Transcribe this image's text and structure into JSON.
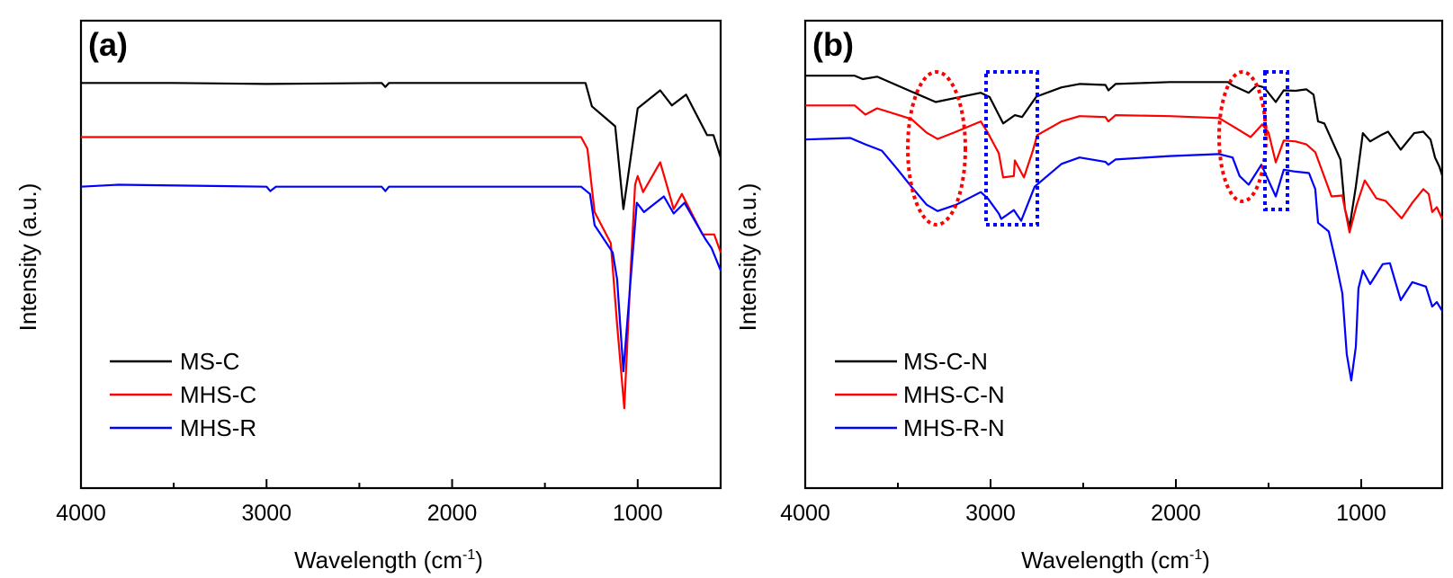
{
  "chart_data": [
    {
      "type": "line",
      "panel_label": "(a)",
      "xlabel": "Wavelength  (cm",
      "xlabel_sup": "-1",
      "xlabel_end": ")",
      "ylabel": "Intensity  (a.u.)",
      "xlim": [
        4000,
        553
      ],
      "ylim": [
        4,
        100
      ],
      "x_reversed": true,
      "grid": false,
      "legend_position": "bottom-left",
      "x_ticks": [
        4000,
        3000,
        2000,
        1000
      ],
      "x_tick_labels": [
        "4000",
        "3000",
        "2000",
        "1000"
      ],
      "x_minor_ticks": [
        3500,
        2500,
        1500
      ],
      "series": [
        {
          "name": "MS-C",
          "color": "#000000",
          "points": [
            [
              4000,
              87.2
            ],
            [
              3500,
              87.2
            ],
            [
              3000,
              87.0
            ],
            [
              2380,
              87.2
            ],
            [
              2360,
              86.4
            ],
            [
              2340,
              87.2
            ],
            [
              1281,
              87.2
            ],
            [
              1247,
              82.4
            ],
            [
              1121,
              78.3
            ],
            [
              1077,
              61.3
            ],
            [
              1000,
              82.0
            ],
            [
              879,
              85.7
            ],
            [
              816,
              82.6
            ],
            [
              739,
              84.8
            ],
            [
              626,
              76.5
            ],
            [
              592,
              76.5
            ],
            [
              553,
              71.9
            ]
          ]
        },
        {
          "name": "MHS-C",
          "color": "#ff0000",
          "points": [
            [
              4000,
              76.1
            ],
            [
              3000,
              76.1
            ],
            [
              2000,
              76.1
            ],
            [
              1305,
              76.1
            ],
            [
              1271,
              73.7
            ],
            [
              1232,
              60.7
            ],
            [
              1145,
              54.3
            ],
            [
              1111,
              37.6
            ],
            [
              1072,
              20.4
            ],
            [
              1038,
              48.7
            ],
            [
              1014,
              66.3
            ],
            [
              1000,
              68.1
            ],
            [
              971,
              64.8
            ],
            [
              879,
              70.9
            ],
            [
              806,
              61.3
            ],
            [
              762,
              64.4
            ],
            [
              651,
              56.1
            ],
            [
              588,
              56.1
            ],
            [
              553,
              52.4
            ]
          ]
        },
        {
          "name": "MHS-R",
          "color": "#0000ff",
          "points": [
            [
              4000,
              65.9
            ],
            [
              3800,
              66.3
            ],
            [
              3000,
              65.9
            ],
            [
              2980,
              65.0
            ],
            [
              2950,
              65.9
            ],
            [
              2380,
              65.9
            ],
            [
              2360,
              65.0
            ],
            [
              2340,
              65.9
            ],
            [
              1305,
              65.9
            ],
            [
              1257,
              64.4
            ],
            [
              1232,
              58.0
            ],
            [
              1135,
              52.4
            ],
            [
              1111,
              46.9
            ],
            [
              1077,
              28.0
            ],
            [
              1038,
              46.9
            ],
            [
              1005,
              62.6
            ],
            [
              966,
              60.7
            ],
            [
              859,
              63.9
            ],
            [
              806,
              60.4
            ],
            [
              748,
              62.6
            ],
            [
              636,
              55.2
            ],
            [
              602,
              53.3
            ],
            [
              553,
              48.7
            ]
          ]
        }
      ]
    },
    {
      "type": "line",
      "panel_label": "(b)",
      "xlabel": "Wavelength  (cm",
      "xlabel_sup": "-1",
      "xlabel_end": ")",
      "ylabel": "Intensity  (a.u.)",
      "xlim": [
        4000,
        563
      ],
      "ylim": [
        4,
        100
      ],
      "x_reversed": true,
      "grid": false,
      "legend_position": "bottom-left",
      "x_ticks": [
        4000,
        3000,
        2000,
        1000
      ],
      "x_tick_labels": [
        "4000",
        "3000",
        "2000",
        "1000"
      ],
      "x_minor_ticks": [
        3500,
        2500,
        1500
      ],
      "annotations": [
        {
          "shape": "ellipse",
          "color": "#ff0000",
          "x_range": [
            3450,
            3120
          ]
        },
        {
          "shape": "rectangle",
          "color": "#0000ff",
          "x_range": [
            3020,
            2745
          ]
        },
        {
          "shape": "ellipse",
          "color": "#ff0000",
          "x_range": [
            1765,
            1510
          ]
        },
        {
          "shape": "rectangle",
          "color": "#0000ff",
          "x_range": [
            1510,
            1390
          ]
        }
      ],
      "series": [
        {
          "name": "MS-C-N",
          "color": "#000000",
          "points": [
            [
              4000,
              88.7
            ],
            [
              3733,
              88.7
            ],
            [
              3690,
              88.0
            ],
            [
              3612,
              88.5
            ],
            [
              3442,
              85.7
            ],
            [
              3296,
              83.3
            ],
            [
              3053,
              85.2
            ],
            [
              3005,
              84.3
            ],
            [
              2932,
              78.9
            ],
            [
              2869,
              80.6
            ],
            [
              2830,
              80.2
            ],
            [
              2753,
              84.4
            ],
            [
              2617,
              86.3
            ],
            [
              2520,
              87.0
            ],
            [
              2380,
              86.8
            ],
            [
              2364,
              85.7
            ],
            [
              2325,
              87.0
            ],
            [
              2034,
              87.4
            ],
            [
              1719,
              87.4
            ],
            [
              1694,
              86.7
            ],
            [
              1607,
              85.2
            ],
            [
              1563,
              86.7
            ],
            [
              1524,
              86.3
            ],
            [
              1461,
              83.3
            ],
            [
              1418,
              85.7
            ],
            [
              1355,
              85.6
            ],
            [
              1296,
              85.9
            ],
            [
              1257,
              84.8
            ],
            [
              1233,
              79.3
            ],
            [
              1199,
              78.9
            ],
            [
              1112,
              71.5
            ],
            [
              1088,
              61.3
            ],
            [
              1063,
              57.6
            ],
            [
              1029,
              65.9
            ],
            [
              991,
              76.9
            ],
            [
              952,
              75.2
            ],
            [
              893,
              76.5
            ],
            [
              855,
              77.2
            ],
            [
              787,
              73.5
            ],
            [
              714,
              76.9
            ],
            [
              665,
              77.2
            ],
            [
              626,
              75.6
            ],
            [
              602,
              71.9
            ],
            [
              578,
              70.0
            ],
            [
              563,
              68.2
            ]
          ]
        },
        {
          "name": "MHS-C-N",
          "color": "#ff0000",
          "points": [
            [
              4000,
              82.6
            ],
            [
              3733,
              82.6
            ],
            [
              3675,
              80.7
            ],
            [
              3612,
              82.0
            ],
            [
              3427,
              79.8
            ],
            [
              3345,
              77.0
            ],
            [
              3286,
              75.7
            ],
            [
              3199,
              77.0
            ],
            [
              3053,
              79.3
            ],
            [
              3015,
              77.0
            ],
            [
              2956,
              72.8
            ],
            [
              2932,
              67.8
            ],
            [
              2874,
              68.1
            ],
            [
              2869,
              71.3
            ],
            [
              2820,
              67.8
            ],
            [
              2772,
              73.3
            ],
            [
              2748,
              76.5
            ],
            [
              2617,
              79.3
            ],
            [
              2520,
              80.4
            ],
            [
              2380,
              80.2
            ],
            [
              2364,
              79.3
            ],
            [
              2325,
              80.6
            ],
            [
              2034,
              80.4
            ],
            [
              1767,
              80.0
            ],
            [
              1670,
              77.8
            ],
            [
              1597,
              76.1
            ],
            [
              1534,
              78.7
            ],
            [
              1500,
              77.0
            ],
            [
              1461,
              70.9
            ],
            [
              1418,
              75.4
            ],
            [
              1355,
              75.2
            ],
            [
              1296,
              74.6
            ],
            [
              1248,
              73.0
            ],
            [
              1160,
              63.9
            ],
            [
              1102,
              64.1
            ],
            [
              1063,
              56.5
            ],
            [
              1024,
              62.2
            ],
            [
              981,
              67.2
            ],
            [
              918,
              63.5
            ],
            [
              869,
              63.0
            ],
            [
              782,
              59.4
            ],
            [
              724,
              62.6
            ],
            [
              665,
              65.4
            ],
            [
              636,
              64.4
            ],
            [
              617,
              60.7
            ],
            [
              592,
              61.7
            ],
            [
              563,
              59.3
            ]
          ]
        },
        {
          "name": "MHS-R-N",
          "color": "#0000ff",
          "points": [
            [
              4000,
              75.6
            ],
            [
              3757,
              75.9
            ],
            [
              3675,
              74.6
            ],
            [
              3587,
              73.3
            ],
            [
              3505,
              69.6
            ],
            [
              3427,
              65.9
            ],
            [
              3345,
              62.2
            ],
            [
              3286,
              60.9
            ],
            [
              3185,
              62.2
            ],
            [
              3053,
              64.8
            ],
            [
              3015,
              63.5
            ],
            [
              2956,
              60.4
            ],
            [
              2942,
              59.3
            ],
            [
              2874,
              61.1
            ],
            [
              2835,
              58.9
            ],
            [
              2762,
              65.9
            ],
            [
              2617,
              70.6
            ],
            [
              2520,
              71.9
            ],
            [
              2380,
              71.0
            ],
            [
              2364,
              70.4
            ],
            [
              2325,
              71.5
            ],
            [
              2034,
              72.2
            ],
            [
              1767,
              72.6
            ],
            [
              1694,
              71.9
            ],
            [
              1656,
              68.1
            ],
            [
              1607,
              66.3
            ],
            [
              1539,
              70.4
            ],
            [
              1461,
              63.9
            ],
            [
              1418,
              69.4
            ],
            [
              1355,
              69.0
            ],
            [
              1282,
              68.7
            ],
            [
              1248,
              65.4
            ],
            [
              1233,
              58.5
            ],
            [
              1175,
              56.7
            ],
            [
              1136,
              50.2
            ],
            [
              1102,
              44.0
            ],
            [
              1078,
              31.5
            ],
            [
              1054,
              26.1
            ],
            [
              1029,
              33.0
            ],
            [
              1015,
              45.0
            ],
            [
              991,
              48.7
            ],
            [
              952,
              45.9
            ],
            [
              884,
              50.0
            ],
            [
              845,
              50.2
            ],
            [
              787,
              42.6
            ],
            [
              724,
              46.3
            ],
            [
              651,
              45.4
            ],
            [
              617,
              41.3
            ],
            [
              592,
              42.2
            ],
            [
              563,
              40.4
            ]
          ]
        }
      ]
    }
  ]
}
